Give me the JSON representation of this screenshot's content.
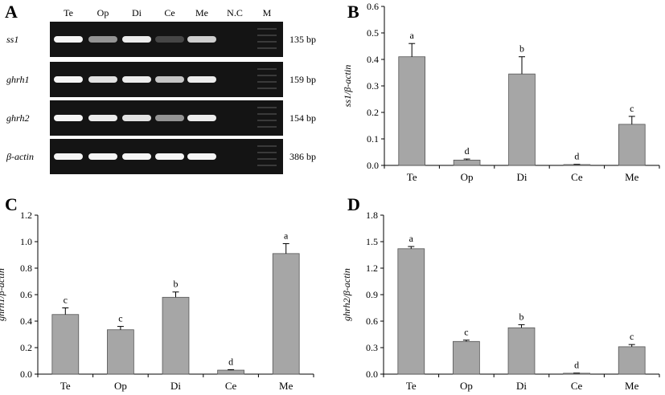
{
  "panel_labels": {
    "A": "A",
    "B": "B",
    "C": "C",
    "D": "D"
  },
  "gel": {
    "lanes": [
      "Te",
      "Op",
      "Di",
      "Ce",
      "Me",
      "N.C",
      "M"
    ],
    "rows": [
      {
        "gene": "ss1",
        "size": "135 bp",
        "intensity": [
          0.95,
          0.45,
          0.9,
          0.05,
          0.75,
          0,
          0
        ]
      },
      {
        "gene": "ghrh1",
        "size": "159 bp",
        "intensity": [
          0.95,
          0.85,
          0.9,
          0.7,
          0.9,
          0,
          0
        ]
      },
      {
        "gene": "ghrh2",
        "size": "154 bp",
        "intensity": [
          0.95,
          0.9,
          0.85,
          0.45,
          0.9,
          0,
          0
        ]
      },
      {
        "gene": "β-actin",
        "size": "386 bp",
        "intensity": [
          0.95,
          0.95,
          0.95,
          0.95,
          0.95,
          0,
          0
        ]
      }
    ]
  },
  "chart_data": [
    {
      "type": "bar",
      "panel": "B",
      "categories": [
        "Te",
        "Op",
        "Di",
        "Ce",
        "Me"
      ],
      "values": [
        0.41,
        0.02,
        0.345,
        0.003,
        0.155
      ],
      "errors": [
        0.05,
        0.004,
        0.065,
        0.001,
        0.03
      ],
      "letters": [
        "a",
        "d",
        "b",
        "d",
        "c"
      ],
      "ylabel": "ss1/β-actin",
      "ylim": [
        0,
        0.6
      ],
      "yticks": [
        "0.0",
        "0.1",
        "0.2",
        "0.3",
        "0.4",
        "0.5",
        "0.6"
      ],
      "color": "#a6a6a6"
    },
    {
      "type": "bar",
      "panel": "C",
      "categories": [
        "Te",
        "Op",
        "Di",
        "Ce",
        "Me"
      ],
      "values": [
        0.45,
        0.335,
        0.58,
        0.03,
        0.91
      ],
      "errors": [
        0.05,
        0.025,
        0.04,
        0.004,
        0.075
      ],
      "letters": [
        "c",
        "c",
        "b",
        "d",
        "a"
      ],
      "ylabel": "ghrh1/β-actin",
      "ylim": [
        0,
        1.2
      ],
      "yticks": [
        "0.0",
        "0.2",
        "0.4",
        "0.6",
        "0.8",
        "1.0",
        "1.2"
      ],
      "color": "#a6a6a6"
    },
    {
      "type": "bar",
      "panel": "D",
      "categories": [
        "Te",
        "Op",
        "Di",
        "Ce",
        "Me"
      ],
      "values": [
        1.42,
        0.37,
        0.525,
        0.01,
        0.31
      ],
      "errors": [
        0.025,
        0.015,
        0.035,
        0.002,
        0.025
      ],
      "letters": [
        "a",
        "c",
        "b",
        "d",
        "c"
      ],
      "ylabel": "ghrh2/β-actin",
      "ylim": [
        0,
        1.8
      ],
      "yticks": [
        "0.0",
        "0.3",
        "0.6",
        "0.9",
        "1.2",
        "1.5",
        "1.8"
      ],
      "color": "#a6a6a6"
    }
  ]
}
